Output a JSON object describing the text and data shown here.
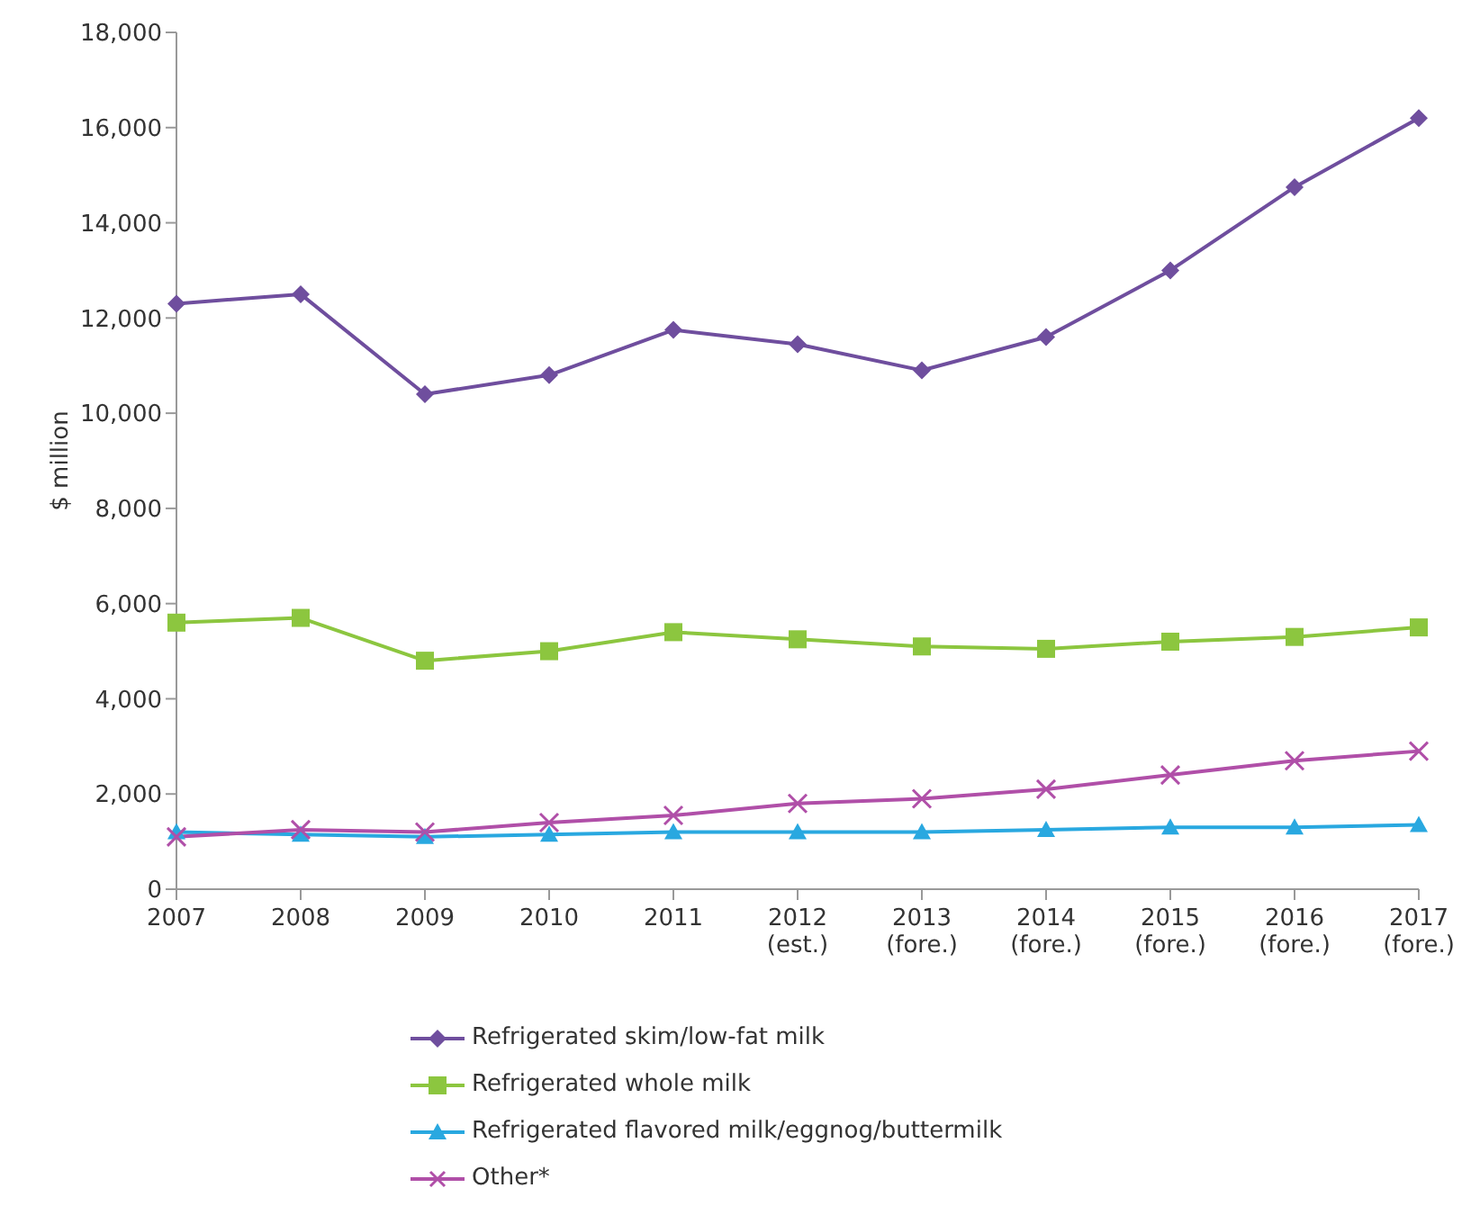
{
  "chart_data": {
    "type": "line",
    "ylabel": "$ million",
    "categories": [
      "2007",
      "2008",
      "2009",
      "2010",
      "2011",
      "2012\n(est.)",
      "2013\n(fore.)",
      "2014\n(fore.)",
      "2015\n(fore.)",
      "2016\n(fore.)",
      "2017\n(fore.)"
    ],
    "series": [
      {
        "name": "Refrigerated skim/low-fat milk",
        "color": "#6f4e9e",
        "marker": "diamond",
        "values": [
          12300,
          12500,
          10400,
          10800,
          11750,
          11450,
          10900,
          11600,
          13000,
          14750,
          16200
        ]
      },
      {
        "name": "Refrigerated whole milk",
        "color": "#8cc63f",
        "marker": "square",
        "values": [
          5600,
          5700,
          4800,
          5000,
          5400,
          5250,
          5100,
          5050,
          5200,
          5300,
          5500
        ]
      },
      {
        "name": "Refrigerated flavored milk/eggnog/buttermilk",
        "color": "#29a8e0",
        "marker": "triangle",
        "values": [
          1200,
          1150,
          1100,
          1150,
          1200,
          1200,
          1200,
          1250,
          1300,
          1300,
          1350
        ]
      },
      {
        "name": "Other*",
        "color": "#b04fa8",
        "marker": "cross",
        "values": [
          1100,
          1250,
          1200,
          1400,
          1550,
          1800,
          1900,
          2100,
          2400,
          2700,
          2900
        ]
      }
    ],
    "ylim": [
      0,
      18000
    ],
    "yticks": [
      0,
      {
        "value": 2000,
        "label": "2,000"
      },
      {
        "value": 4000,
        "label": "4,000"
      },
      {
        "value": 6000,
        "label": "6,000"
      },
      {
        "value": 8000,
        "label": "8,000"
      },
      {
        "value": 10000,
        "label": "10,000"
      },
      {
        "value": 12000,
        "label": "12,000"
      },
      {
        "value": 14000,
        "label": "14,000"
      },
      {
        "value": 16000,
        "label": "16,000"
      },
      {
        "value": 18000,
        "label": "18,000"
      }
    ],
    "grid": false,
    "legend": "bottom",
    "line_style": "solid"
  }
}
